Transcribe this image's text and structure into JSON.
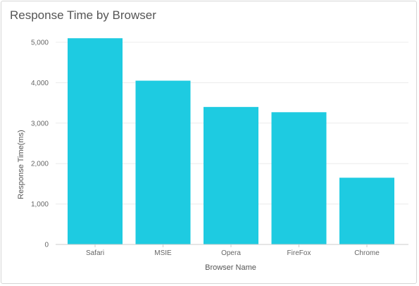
{
  "colors": {
    "bar": "#1ecbe1",
    "grid": "#ececec",
    "axis": "#cccccc"
  },
  "chart_data": {
    "type": "bar",
    "title": "Response Time by Browser",
    "xlabel": "Browser Name",
    "ylabel": "Response Time(ms)",
    "categories": [
      "Safari",
      "MSIE",
      "Opera",
      "FireFox",
      "Chrome"
    ],
    "values": [
      5100,
      4050,
      3400,
      3270,
      1650
    ],
    "ylim": [
      0,
      5000
    ],
    "yticks": [
      0,
      1000,
      2000,
      3000,
      4000,
      5000
    ],
    "ytick_labels": [
      "0",
      "1,000",
      "2,000",
      "3,000",
      "4,000",
      "5,000"
    ],
    "grid": true,
    "legend": "none"
  }
}
